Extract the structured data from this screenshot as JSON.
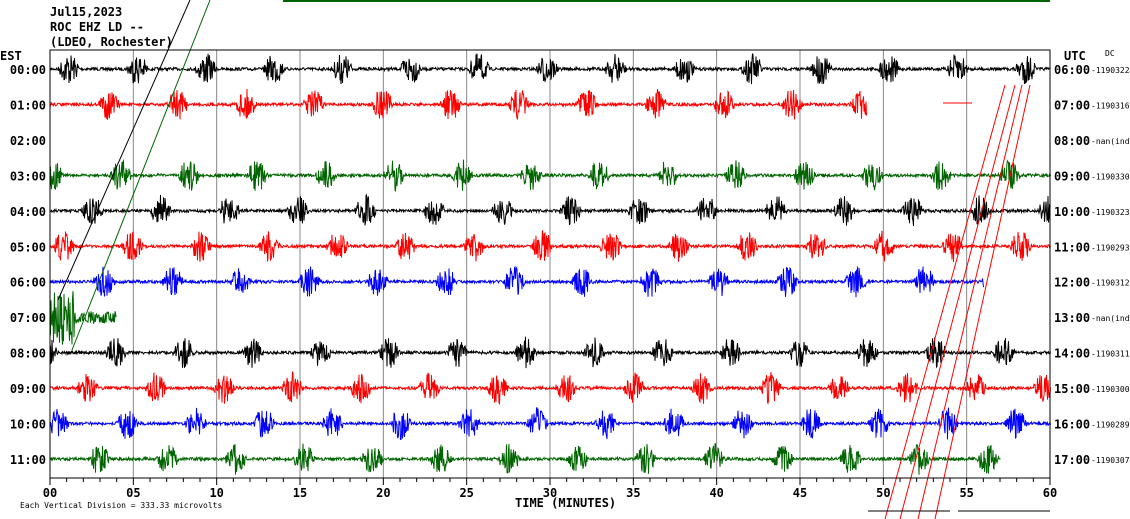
{
  "header": {
    "date": "Jul15,2023",
    "station": "ROC EHZ LD --",
    "network": "(LDEO, Rochester)"
  },
  "left_tz": "EST",
  "right_tz": "UTC",
  "dc_label": "DC",
  "xlabel": "TIME (MINUTES)",
  "footer": "Each Vertical Division =  333.33 microvolts",
  "colors": [
    "#000000",
    "#ff0000",
    "#0000ff",
    "#006400"
  ],
  "chart_data": {
    "type": "line",
    "title": "ROC EHZ LD -- helicorder Jul15,2023",
    "xlabel": "TIME (MINUTES)",
    "xlim": [
      0,
      60
    ],
    "xticks": [
      "00",
      "05",
      "10",
      "15",
      "20",
      "25",
      "30",
      "35",
      "40",
      "45",
      "50",
      "55",
      "60"
    ],
    "rows": [
      {
        "est": "00:00",
        "utc": "06:00",
        "dc": "-1190322",
        "end_min": 60
      },
      {
        "est": "01:00",
        "utc": "07:00",
        "dc": "-1190316",
        "end_min": 49
      },
      {
        "est": "02:00",
        "utc": "08:00",
        "dc": "-nan(ind",
        "end_min": 0
      },
      {
        "est": "03:00",
        "utc": "09:00",
        "dc": "-1190330",
        "end_min": 60
      },
      {
        "est": "04:00",
        "utc": "10:00",
        "dc": "-1190323",
        "end_min": 60
      },
      {
        "est": "05:00",
        "utc": "11:00",
        "dc": "-1190293",
        "end_min": 60
      },
      {
        "est": "06:00",
        "utc": "12:00",
        "dc": "-1190312",
        "end_min": 56
      },
      {
        "est": "07:00",
        "utc": "13:00",
        "dc": "-nan(ind",
        "end_min": 4
      },
      {
        "est": "08:00",
        "utc": "14:00",
        "dc": "-1190311",
        "end_min": 60
      },
      {
        "est": "09:00",
        "utc": "15:00",
        "dc": "-1190300",
        "end_min": 60
      },
      {
        "est": "10:00",
        "utc": "16:00",
        "dc": "-1190289",
        "end_min": 60
      },
      {
        "est": "11:00",
        "utc": "17:00",
        "dc": "-1190307",
        "end_min": 57
      }
    ]
  }
}
